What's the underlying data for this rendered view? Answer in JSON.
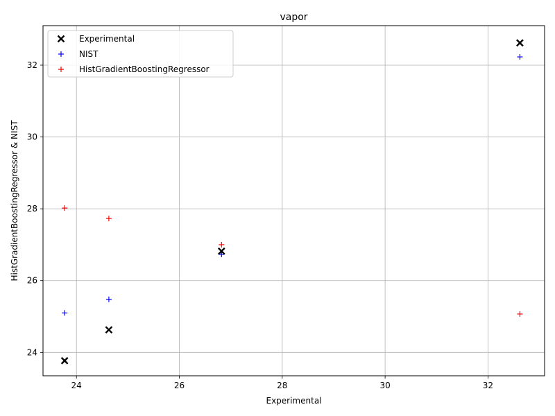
{
  "chart_data": {
    "type": "scatter",
    "title": "vapor",
    "xlabel": "Experimental",
    "ylabel": "HistGradientBoostingRegressor & NIST",
    "xlim": [
      23.35,
      33.1
    ],
    "ylim": [
      23.35,
      33.1
    ],
    "xticks": [
      24,
      26,
      28,
      30,
      32
    ],
    "yticks": [
      24,
      26,
      28,
      30,
      32
    ],
    "grid": true,
    "legend_position": "top-left",
    "series": [
      {
        "name": "Experimental",
        "marker": "x",
        "color": "#000000",
        "points": [
          {
            "x": 23.77,
            "y": 23.77
          },
          {
            "x": 24.63,
            "y": 24.63
          },
          {
            "x": 26.82,
            "y": 26.82
          },
          {
            "x": 32.62,
            "y": 32.62
          }
        ]
      },
      {
        "name": "NIST",
        "marker": "+",
        "color": "#0000ff",
        "points": [
          {
            "x": 23.77,
            "y": 25.1
          },
          {
            "x": 24.63,
            "y": 25.48
          },
          {
            "x": 26.82,
            "y": 26.73
          },
          {
            "x": 32.62,
            "y": 32.23
          }
        ]
      },
      {
        "name": "HistGradientBoostingRegressor",
        "marker": "+",
        "color": "#ff0000",
        "points": [
          {
            "x": 23.77,
            "y": 28.02
          },
          {
            "x": 24.63,
            "y": 27.73
          },
          {
            "x": 26.82,
            "y": 27.0
          },
          {
            "x": 32.62,
            "y": 25.07
          }
        ]
      }
    ]
  }
}
